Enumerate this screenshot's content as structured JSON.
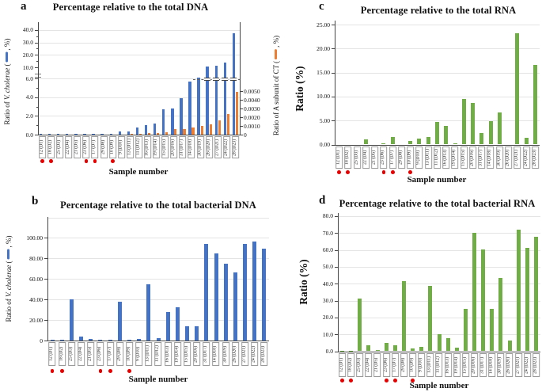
{
  "figure": {
    "marker_color": "#e60000",
    "marked_note": "red-dot-marked samples"
  },
  "chart_data": [
    {
      "panel": "a",
      "type": "bar",
      "title": "Percentage relative to the total DNA",
      "xlabel": "Sample number",
      "categories": [
        "12 (D1)",
        "18 (D2)",
        "25 (D3)",
        "22 (D4)",
        "21 (D5)",
        "23 (D6)",
        "17 (D7)",
        "29 (D8)",
        "10 (D9)",
        "9 (D10)",
        "13 (D11)",
        "11 (D12)",
        "16 (D13)",
        "19 (D14)",
        "15 (D15)",
        "20 (D16)",
        "31 (D17)",
        "14 (D18)",
        "30 (D19)",
        "26 (D20)",
        "27 (D21)",
        "24 (D22)",
        "28 (D23)"
      ],
      "marked_indices": [
        0,
        1,
        5,
        6,
        8
      ],
      "series": [
        {
          "name": "Ratio of V. cholerae",
          "color": "#4472C4",
          "axis": "left",
          "values": [
            0.05,
            0.05,
            0.02,
            0.02,
            0.1,
            0.1,
            0.1,
            0.1,
            0.1,
            0.3,
            0.3,
            0.8,
            1.0,
            1.2,
            2.7,
            2.8,
            3.9,
            5.7,
            6.1,
            10.5,
            11,
            14,
            37.5
          ]
        },
        {
          "name": "Ratio of A subunit of CT",
          "color": "#ED7D31",
          "axis": "right",
          "values": [
            0,
            0,
            0,
            0,
            0,
            0,
            0,
            0,
            0,
            0,
            5e-05,
            0.0001,
            0.00015,
            0.00015,
            0.0003,
            0.0006,
            0.0006,
            0.0008,
            0.001,
            0.0012,
            0.0016,
            0.0024,
            0.0049
          ]
        }
      ],
      "left_axis": {
        "label": {
          "pre": "Ratio of ",
          "italic": "V. cholerae",
          "open": " (",
          "close": ", %)"
        },
        "ticks": [
          {
            "v": 0,
            "label": "0.0"
          },
          {
            "v": 2,
            "label": "2.0"
          },
          {
            "v": 4,
            "label": "4.0"
          },
          {
            "v": 6,
            "label": "6.0"
          },
          {
            "v": 10,
            "label": "10.0"
          },
          {
            "v": 20,
            "label": "20.0"
          },
          {
            "v": 30,
            "label": "30.0"
          },
          {
            "v": 40,
            "label": "40.0"
          }
        ],
        "minor_ticks": [
          1,
          3,
          5,
          15,
          25,
          35
        ],
        "axis_break_between": [
          6.5,
          10
        ]
      },
      "right_axis": {
        "label": {
          "pre": "Ratio of A subunit of CT (",
          "close": ", %)"
        },
        "ticks": [
          {
            "v": 0,
            "label": "0"
          },
          {
            "v": 0.001,
            "label": "0.0010"
          },
          {
            "v": 0.002,
            "label": "0.0020"
          },
          {
            "v": 0.003,
            "label": "0.0030"
          },
          {
            "v": 0.004,
            "label": "0.0040"
          },
          {
            "v": 0.005,
            "label": "0.0050"
          }
        ],
        "max": 0.005
      }
    },
    {
      "panel": "b",
      "type": "bar",
      "title": "Percentage relative to the total bacterial DNA",
      "xlabel": "Sample number",
      "categories": [
        "12 (D1)",
        "18 (D2)",
        "25 (D3)",
        "22 (D4)",
        "21 (D5)",
        "23 (D6)",
        "17 (D7)",
        "29 (D8)",
        "10 (D9)",
        "9 (D10)",
        "13 (D11)",
        "11 (D12)",
        "16 (D13)",
        "19 (D14)",
        "15 (D15)",
        "20 (D16)",
        "31 (D17)",
        "14 (D18)",
        "30 (D19)",
        "26 (D20)",
        "27 (D21)",
        "24 (D22)",
        "28 (D23)"
      ],
      "marked_indices": [
        0,
        1,
        5,
        6,
        8
      ],
      "series": [
        {
          "name": "Ratio of V. cholerae",
          "color": "#4472C4",
          "axis": "left",
          "values": [
            0.7,
            0.7,
            40,
            3.5,
            1.5,
            0.7,
            0.7,
            38,
            0.7,
            1.2,
            55,
            2.5,
            28,
            32,
            14,
            13.5,
            94,
            85,
            75,
            66,
            94,
            96,
            89
          ]
        }
      ],
      "left_axis": {
        "label": {
          "pre": "Ratio of ",
          "italic": "V. cholerae",
          "open": " (",
          "close": ", %)"
        },
        "ticks": [
          {
            "v": 0,
            "label": "0"
          },
          {
            "v": 20,
            "label": "20.00"
          },
          {
            "v": 40,
            "label": "40.00"
          },
          {
            "v": 60,
            "label": "60.00"
          },
          {
            "v": 80,
            "label": "80.00"
          },
          {
            "v": 100,
            "label": "100.00"
          }
        ]
      }
    },
    {
      "panel": "c",
      "type": "bar",
      "title": "Percentage relative to the total RNA",
      "xlabel": "Sample number",
      "categories": [
        "12 (D1)",
        "18 (D2)",
        "25 (D3)",
        "22 (D4)",
        "21 (D5)",
        "23 (D6)",
        "17 (D7)",
        "29 (D8)",
        "10 (D9)",
        "9 (D10)",
        "13 (D11)",
        "11 (D12)",
        "16 (D13)",
        "19 (D14)",
        "15 (D15)",
        "20 (D16)",
        "31 (D17)",
        "14 (D18)",
        "30 (D19)",
        "26 (D20)",
        "27 (D21)",
        "24 (D22)",
        "28 (D23)"
      ],
      "marked_indices": [
        0,
        1,
        5,
        6,
        8
      ],
      "series": [
        {
          "name": "Ratio",
          "color": "#70AD47",
          "axis": "left",
          "values": [
            0,
            0,
            0,
            1.0,
            0,
            0.3,
            1.5,
            0,
            0.7,
            1.2,
            1.5,
            4.7,
            3.8,
            0.3,
            9.5,
            8.6,
            2.4,
            4.8,
            6.7,
            0,
            23.2,
            1.4,
            16.6
          ]
        }
      ],
      "left_axis": {
        "label": {
          "text": "Ratio (%)"
        },
        "ticks": [
          {
            "v": 0,
            "label": "0.00"
          },
          {
            "v": 5,
            "label": "5.00"
          },
          {
            "v": 10,
            "label": "10.00"
          },
          {
            "v": 15,
            "label": "15.00"
          },
          {
            "v": 20,
            "label": "20.00"
          },
          {
            "v": 25,
            "label": "25.00"
          }
        ]
      }
    },
    {
      "panel": "d",
      "type": "bar",
      "title": "Percentage relative to the total bacterial RNA",
      "xlabel": "Sample number",
      "categories": [
        "12 (D1)",
        "18 (D2)",
        "25 (D3)",
        "22 (D4)",
        "21 (D5)",
        "23 (D6)",
        "17 (D7)",
        "29 (D8)",
        "10 (D9)",
        "9 (D10)",
        "13 (D11)",
        "11 (D12)",
        "16 (D13)",
        "19 (D14)",
        "15 (D15)",
        "20 (D16)",
        "31 (D17)",
        "14 (D18)",
        "30 (D19)",
        "26 (D20)",
        "27 (D21)",
        "24 (D22)",
        "28 (D23)"
      ],
      "marked_indices": [
        0,
        1,
        5,
        6,
        8
      ],
      "series": [
        {
          "name": "Ratio",
          "color": "#70AD47",
          "axis": "left",
          "values": [
            0.3,
            0.3,
            31,
            3.3,
            0.8,
            4.7,
            3.3,
            41.5,
            1.6,
            2.5,
            38.5,
            10.3,
            7.8,
            2.0,
            25.3,
            70,
            60.5,
            25.2,
            43.5,
            6.3,
            72,
            61,
            67.8
          ]
        }
      ],
      "left_axis": {
        "label": {
          "text": "Ratio (%)"
        },
        "ticks": [
          {
            "v": 0,
            "label": "0.0"
          },
          {
            "v": 10,
            "label": "10.0"
          },
          {
            "v": 20,
            "label": "20.0"
          },
          {
            "v": 30,
            "label": "30.0"
          },
          {
            "v": 40,
            "label": "40.0"
          },
          {
            "v": 50,
            "label": "50.0"
          },
          {
            "v": 60,
            "label": "60.0"
          },
          {
            "v": 70,
            "label": "70.0"
          },
          {
            "v": 80,
            "label": "80.0"
          }
        ]
      }
    }
  ]
}
